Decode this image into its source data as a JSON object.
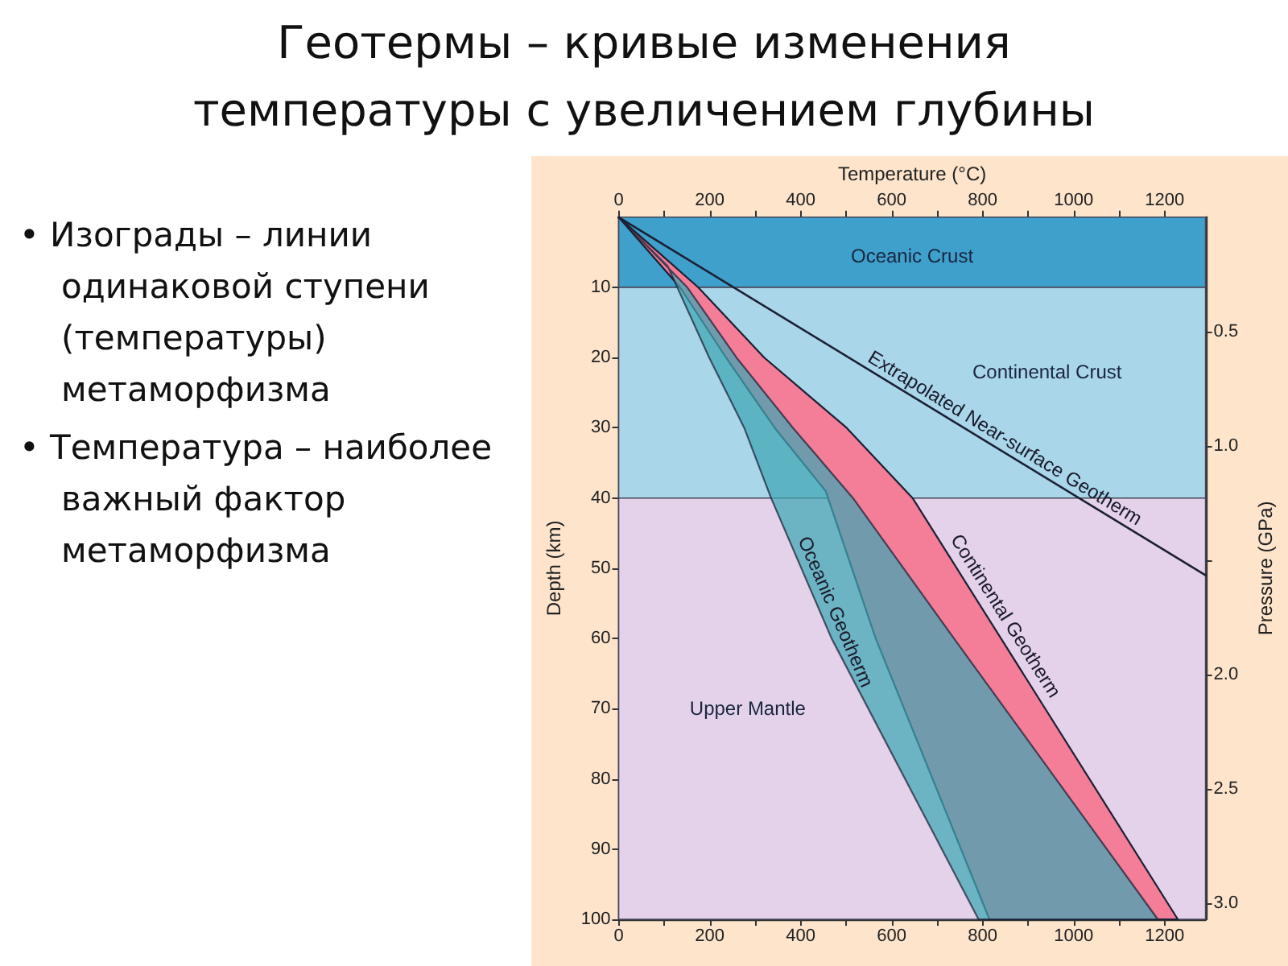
{
  "chart_data": {
    "type": "line",
    "title": "Геотермы – кривые изменения температуры с увеличением глубины",
    "x2label": "Temperature (°C)",
    "ylabel": "Depth (km)",
    "y2label": "Pressure (GPa)",
    "xlim": [
      0,
      1290
    ],
    "xticks": [
      0,
      {
        "value": 100,
        "label": null
      },
      200,
      {
        "value": 300,
        "label": null
      },
      400,
      {
        "value": 500,
        "label": null
      },
      600,
      {
        "value": 700,
        "label": null
      },
      800,
      {
        "value": 900,
        "label": null
      },
      1000,
      {
        "value": 1100,
        "label": null
      },
      1200
    ],
    "x2lim": [
      0,
      1290
    ],
    "x2ticks": [
      0,
      {
        "value": 100,
        "label": null
      },
      200,
      {
        "value": 300,
        "label": null
      },
      400,
      {
        "value": 500,
        "label": null
      },
      600,
      {
        "value": 700,
        "label": null
      },
      800,
      {
        "value": 900,
        "label": null
      },
      1000,
      {
        "value": 1100,
        "label": null
      },
      1200
    ],
    "ylim": [
      100,
      0
    ],
    "yticks": [
      10,
      20,
      30,
      40,
      50,
      60,
      70,
      80,
      90,
      100
    ],
    "y2lim": [
      3.07,
      0
    ],
    "y2ticks": [
      {
        "value": 0.5,
        "label": "0.5"
      },
      {
        "value": 1,
        "label": "1.0"
      },
      {
        "value": 1.5,
        "label": null
      },
      {
        "value": 2,
        "label": "2.0"
      },
      {
        "value": 2.5,
        "label": "2.5"
      },
      {
        "value": 3,
        "label": "3.0"
      }
    ],
    "bands": [
      {
        "axis": "y",
        "from": 0,
        "to": 10,
        "label": "Oceanic Crust",
        "color": "#3fa0cb"
      },
      {
        "axis": "y",
        "from": 10,
        "to": 40,
        "label": "Continental Crust",
        "color": "#a9d6e9"
      },
      {
        "axis": "y",
        "from": 40,
        "to": 100,
        "label": "Upper Mantle",
        "color": "#e3d2e9"
      }
    ],
    "series": [
      {
        "type": "area",
        "name": "Continental Geotherm",
        "color": "#f47d98",
        "x": [
          0,
          135,
          236,
          343,
          455,
          565,
          815,
          1229,
          646,
          501,
          320,
          175,
          0
        ],
        "values": [
          0,
          10,
          20,
          30,
          39,
          60,
          100,
          100,
          40,
          30,
          20,
          10,
          0
        ]
      },
      {
        "type": "area",
        "name": "Oceanic Geotherm",
        "color": "#3fa6b4",
        "x": [
          0,
          108,
          199,
          276,
          335,
          468,
          791,
          1185,
          737,
          515,
          383,
          259,
          151,
          0
        ],
        "values": [
          0,
          7,
          20,
          30,
          40,
          60,
          100,
          100,
          60,
          40,
          30,
          20,
          10,
          0
        ]
      },
      {
        "name": "Extrapolated Near-surface Geotherm",
        "color": "#1c2034",
        "x": [
          0,
          1290
        ],
        "values": [
          0,
          51
        ]
      }
    ],
    "annotations": [
      "• Изограды – линии одинаковой ступени (температуры) метаморфизма",
      "• Температура – наиболее важный фактор метаморфизма"
    ],
    "legend": false,
    "marker": "none",
    "line_style": "solid"
  }
}
